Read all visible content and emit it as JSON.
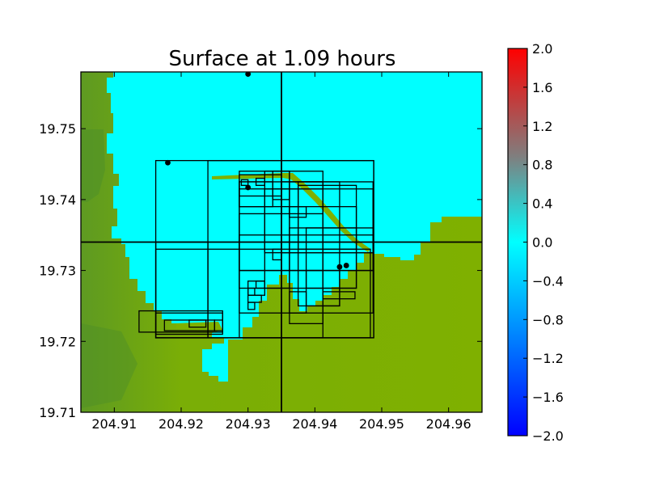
{
  "chart_data": {
    "type": "heatmap",
    "title": "Surface at 1.09 hours",
    "xlabel": "",
    "ylabel": "",
    "xlim": [
      204.905,
      204.965
    ],
    "ylim": [
      19.71,
      19.758
    ],
    "x_ticks": [
      204.91,
      204.92,
      204.93,
      204.94,
      204.95,
      204.96
    ],
    "x_tick_labels": [
      "204.91",
      "204.92",
      "204.93",
      "204.94",
      "204.95",
      "204.96"
    ],
    "y_ticks": [
      19.71,
      19.72,
      19.73,
      19.74,
      19.75
    ],
    "y_tick_labels": [
      "19.71",
      "19.72",
      "19.73",
      "19.74",
      "19.75"
    ],
    "colorbar": {
      "range": [
        -2.0,
        2.0
      ],
      "ticks": [
        -2.0,
        -1.6,
        -1.2,
        -0.8,
        -0.4,
        0.0,
        0.4,
        0.8,
        1.2,
        1.6,
        2.0
      ],
      "tick_labels": [
        "−2.0",
        "−1.6",
        "−1.2",
        "−0.8",
        "−0.4",
        "0.0",
        "0.4",
        "0.8",
        "1.2",
        "1.6",
        "2.0"
      ],
      "colors": {
        "min": "#0000ff",
        "lower_mid": "#00ffff",
        "upper_mid": "#00ffff",
        "max": "#ff0000"
      }
    },
    "fill_colors": {
      "water": "#00ffff",
      "land": "#7fb000",
      "land_dark": "#4e8f28"
    },
    "gauges": [
      {
        "x": 204.93,
        "y": 19.7577
      },
      {
        "x": 204.918,
        "y": 19.7452
      },
      {
        "x": 204.93,
        "y": 19.7417
      },
      {
        "x": 204.9437,
        "y": 19.7305
      },
      {
        "x": 204.9447,
        "y": 19.7307
      }
    ],
    "crosshair": {
      "x": 204.935,
      "y": 19.734
    },
    "grid_patches": [
      [
        204.9162,
        19.7205,
        204.9488,
        19.7455
      ],
      [
        204.924,
        19.7205,
        204.9488,
        19.7455
      ],
      [
        204.9162,
        19.7205,
        204.9483,
        19.733
      ],
      [
        204.9162,
        19.7205,
        204.924,
        19.734
      ],
      [
        204.9287,
        19.7205,
        204.9412,
        19.7415
      ],
      [
        204.9287,
        19.7275,
        204.9362,
        19.744
      ],
      [
        204.9287,
        19.73,
        204.9487,
        19.735
      ],
      [
        204.9287,
        19.73,
        204.9412,
        19.738
      ],
      [
        204.9287,
        19.724,
        204.9487,
        19.73
      ],
      [
        204.9325,
        19.7325,
        204.9487,
        19.7415
      ],
      [
        204.9325,
        19.7275,
        204.9412,
        19.744
      ],
      [
        204.935,
        19.7325,
        204.9487,
        19.7425
      ],
      [
        204.9362,
        19.7225,
        204.9412,
        19.7425
      ],
      [
        204.9362,
        19.73,
        204.9487,
        19.736
      ],
      [
        204.9375,
        19.725,
        204.9437,
        19.7425
      ],
      [
        204.9375,
        19.733,
        204.9462,
        19.742
      ],
      [
        204.9387,
        19.7275,
        204.9462,
        19.736
      ],
      [
        204.9412,
        19.7275,
        204.9462,
        19.739
      ],
      [
        204.9287,
        19.739,
        204.9412,
        19.7425
      ],
      [
        204.9287,
        19.739,
        204.9337,
        19.7425
      ],
      [
        204.9337,
        19.74,
        204.9362,
        19.744
      ],
      [
        204.9362,
        19.7375,
        204.9387,
        19.739
      ],
      [
        204.9387,
        19.725,
        204.9437,
        19.73
      ],
      [
        204.9362,
        19.724,
        204.9387,
        19.727
      ],
      [
        204.9337,
        19.7315,
        204.935,
        19.733
      ],
      [
        204.93,
        19.7265,
        204.9325,
        19.7285
      ],
      [
        204.93,
        19.7255,
        204.932,
        19.7265
      ],
      [
        204.93,
        19.7245,
        204.931,
        19.7255
      ],
      [
        204.93,
        19.7265,
        204.931,
        19.7275
      ],
      [
        204.9312,
        19.7275,
        204.9325,
        19.7285
      ],
      [
        204.9412,
        19.726,
        204.946,
        19.727
      ],
      [
        204.9162,
        19.721,
        204.9262,
        19.724
      ],
      [
        204.9175,
        19.7215,
        204.925,
        19.723
      ],
      [
        204.9212,
        19.722,
        204.9237,
        19.723
      ],
      [
        204.925,
        19.7215,
        204.9262,
        19.723
      ],
      [
        204.9137,
        19.7213,
        204.9262,
        19.7243
      ],
      [
        204.9287,
        19.7405,
        204.935,
        19.7435
      ],
      [
        204.929,
        19.742,
        204.93,
        19.7428
      ],
      [
        204.9312,
        19.742,
        204.9325,
        19.743
      ]
    ]
  }
}
